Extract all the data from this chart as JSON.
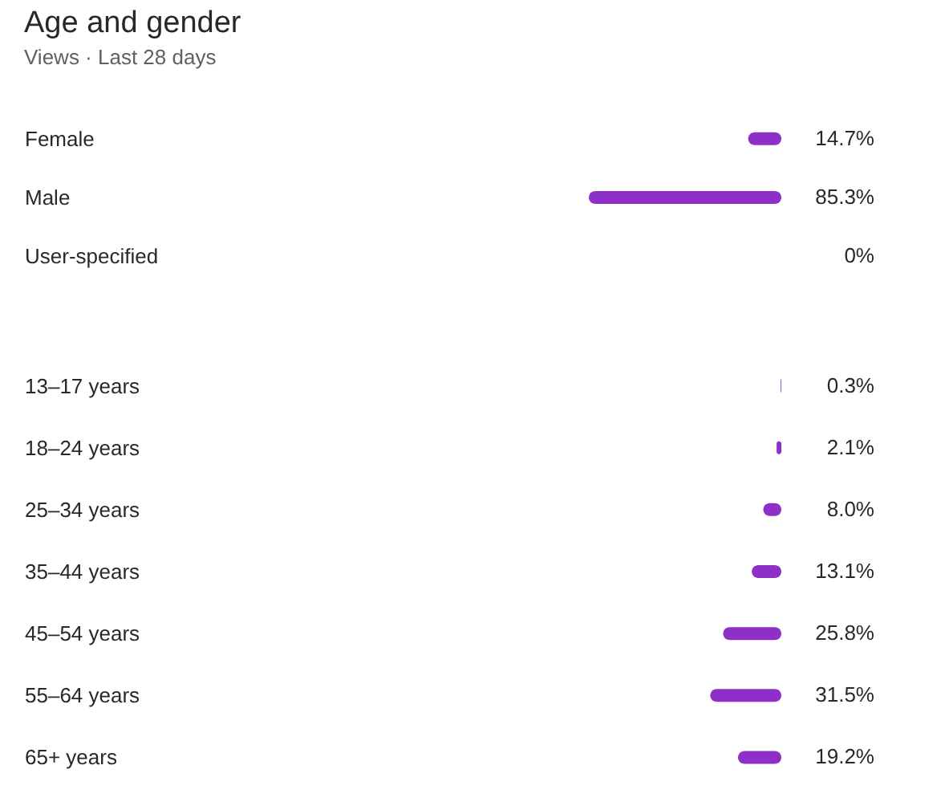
{
  "chart_data": [
    {
      "type": "bar",
      "orientation": "horizontal",
      "title": "Age and gender",
      "subtitle": "Views · Last 28 days",
      "categories": [
        "Female",
        "Male",
        "User-specified"
      ],
      "values": [
        14.7,
        85.3,
        0
      ],
      "value_labels": [
        "14.7%",
        "85.3%",
        "0%"
      ],
      "color": "#8e30c8",
      "tick_labels": "y"
    },
    {
      "type": "bar",
      "orientation": "horizontal",
      "categories": [
        "13–17 years",
        "18–24 years",
        "25–34 years",
        "35–44 years",
        "45–54 years",
        "55–64 years",
        "65+ years"
      ],
      "values": [
        0.3,
        2.1,
        8.0,
        13.1,
        25.8,
        31.5,
        19.2
      ],
      "value_labels": [
        "0.3%",
        "2.1%",
        "8.0%",
        "13.1%",
        "25.8%",
        "31.5%",
        "19.2%"
      ],
      "color": "#8e30c8",
      "tick_labels": "y"
    }
  ]
}
